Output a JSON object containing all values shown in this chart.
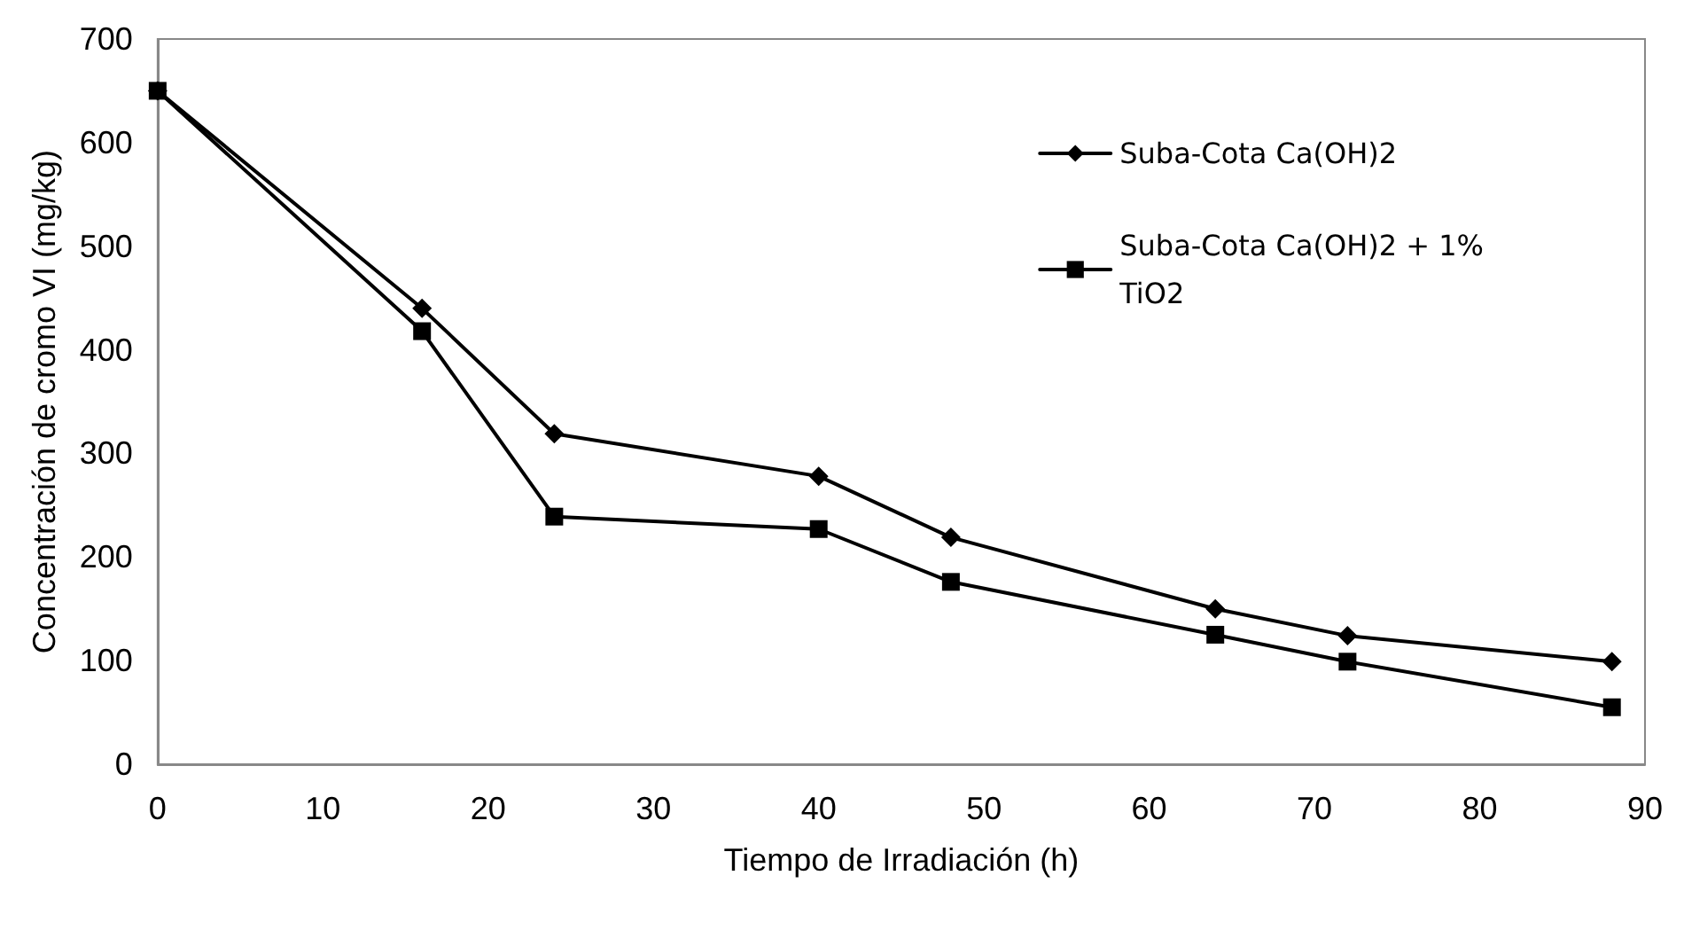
{
  "chart_data": {
    "type": "line",
    "xlabel": "Tiempo de Irradiación (h)",
    "ylabel": "Concentración de cromo VI (mg/kg)",
    "xlim": [
      0,
      90
    ],
    "xticks": [
      0,
      10,
      20,
      30,
      40,
      50,
      60,
      70,
      80,
      90
    ],
    "ylim": [
      0,
      700
    ],
    "yticks": [
      0,
      100,
      200,
      300,
      400,
      500,
      600,
      700
    ],
    "grid": false,
    "legend": "top right",
    "line_style": "solid",
    "series": [
      {
        "name": "Suba-Cota Ca(OH)2",
        "color": "#000000",
        "marker": "diamond",
        "x": [
          0,
          16,
          24,
          40,
          48,
          64,
          72,
          88
        ],
        "values": [
          650,
          440,
          319,
          278,
          219,
          150,
          124,
          99
        ]
      },
      {
        "name": "Suba-Cota Ca(OH)2 + 1% TiO2",
        "color": "#000000",
        "marker": "square",
        "x": [
          0,
          16,
          24,
          40,
          48,
          64,
          72,
          88
        ],
        "values": [
          650,
          418,
          239,
          227,
          176,
          125,
          99,
          55
        ]
      }
    ]
  }
}
